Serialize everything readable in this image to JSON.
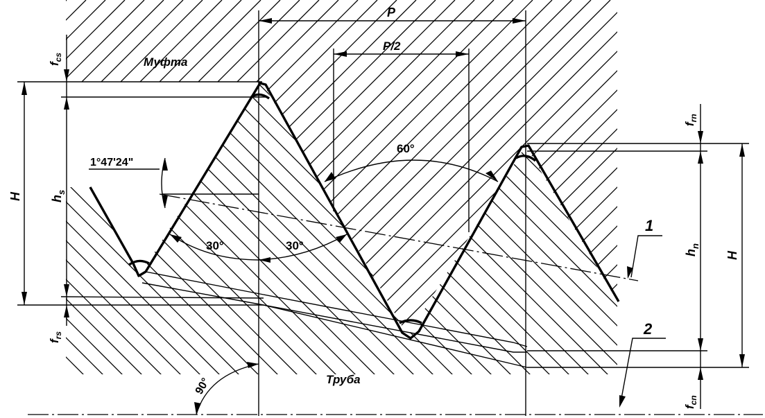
{
  "labels": {
    "coupling": "Муфта",
    "pipe": "Труба",
    "pitch": "P",
    "half_pitch": "P/2",
    "thread_height_left": "H",
    "thread_height_right": "H",
    "coupling_height": "h",
    "coupling_height_sub": "s",
    "pipe_height": "h",
    "pipe_height_sub": "n",
    "f_cs": "f",
    "f_cs_sub": "cs",
    "f_rs": "f",
    "f_rs_sub": "rs",
    "f_rn": "f",
    "f_rn_sub": "rn",
    "f_cn": "f",
    "f_cn_sub": "cn",
    "angle_60": "60°",
    "angle_30_left": "30°",
    "angle_30_right": "30°",
    "angle_90": "90°",
    "taper_angle": "1°47'24\"",
    "callout_1": "1",
    "callout_2": "2"
  }
}
